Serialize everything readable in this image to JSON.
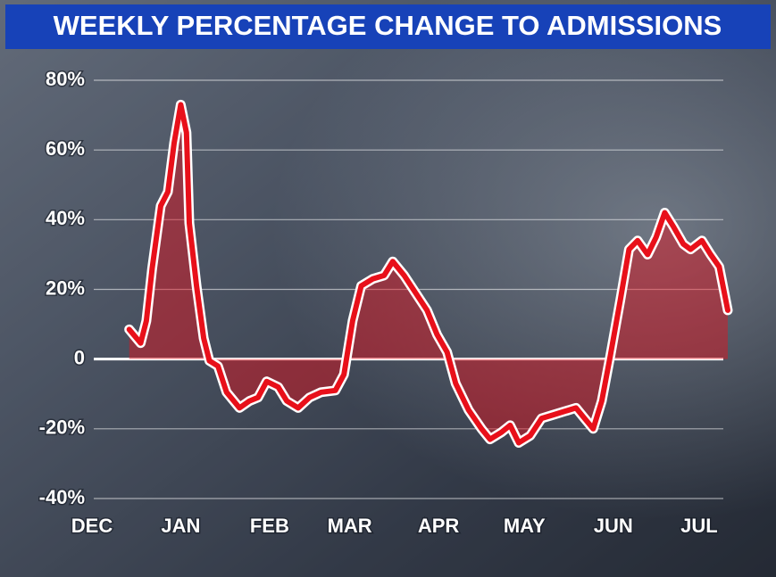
{
  "chart_data": {
    "type": "line",
    "title": "WEEKLY PERCENTAGE CHANGE TO ADMISSIONS",
    "color": "#e8101a",
    "x": [
      13,
      17,
      19,
      21,
      24,
      26.5,
      28.7,
      31,
      33,
      34,
      36.5,
      39,
      41,
      44,
      47,
      51.5,
      55,
      58,
      61,
      65,
      68,
      72,
      76,
      80,
      85,
      88,
      91,
      94,
      98,
      102,
      105,
      109,
      113,
      117,
      120.5,
      124,
      127,
      131.5,
      136,
      139,
      143,
      146,
      149,
      153,
      157,
      161,
      165,
      169,
      172,
      175,
      178,
      181,
      184.5,
      187.5,
      190.5,
      194,
      197,
      200,
      203,
      206.5,
      209,
      213,
      216,
      219,
      222
    ],
    "values": [
      8.5,
      4.6,
      11,
      26,
      44,
      48,
      62,
      73,
      65,
      39,
      21,
      6,
      -0.5,
      -2,
      -9.5,
      -14,
      -12,
      -11,
      -6.4,
      -8,
      -12,
      -14,
      -11,
      -9.5,
      -9,
      -4.4,
      11,
      21,
      23,
      24,
      28,
      24,
      19,
      14,
      7,
      2,
      -7,
      -14.6,
      -20,
      -23,
      -21,
      -19,
      -24,
      -22,
      -17,
      -16,
      -15,
      -14,
      -17,
      -20,
      -12,
      1,
      17,
      31.5,
      34,
      30,
      35,
      42,
      38,
      33,
      31.5,
      34,
      30,
      26.5,
      14
    ],
    "xlim": [
      0,
      222
    ],
    "xticks": [
      {
        "value": 0,
        "label": "DEC"
      },
      {
        "value": 31,
        "label": "JAN"
      },
      {
        "value": 62,
        "label": "FEB"
      },
      {
        "value": 90,
        "label": "MAR"
      },
      {
        "value": 121,
        "label": "APR"
      },
      {
        "value": 151,
        "label": "MAY"
      },
      {
        "value": 182,
        "label": "JUN"
      },
      {
        "value": 212,
        "label": "JUL"
      }
    ],
    "ylim": [
      -40,
      80
    ],
    "yticks": [
      {
        "value": -40,
        "label": "-40%"
      },
      {
        "value": -20,
        "label": "-20%"
      },
      {
        "value": 0,
        "label": "0"
      },
      {
        "value": 20,
        "label": "20%"
      },
      {
        "value": 40,
        "label": "40%"
      },
      {
        "value": 60,
        "label": "60%"
      },
      {
        "value": 80,
        "label": "80%"
      }
    ],
    "grid": true
  }
}
